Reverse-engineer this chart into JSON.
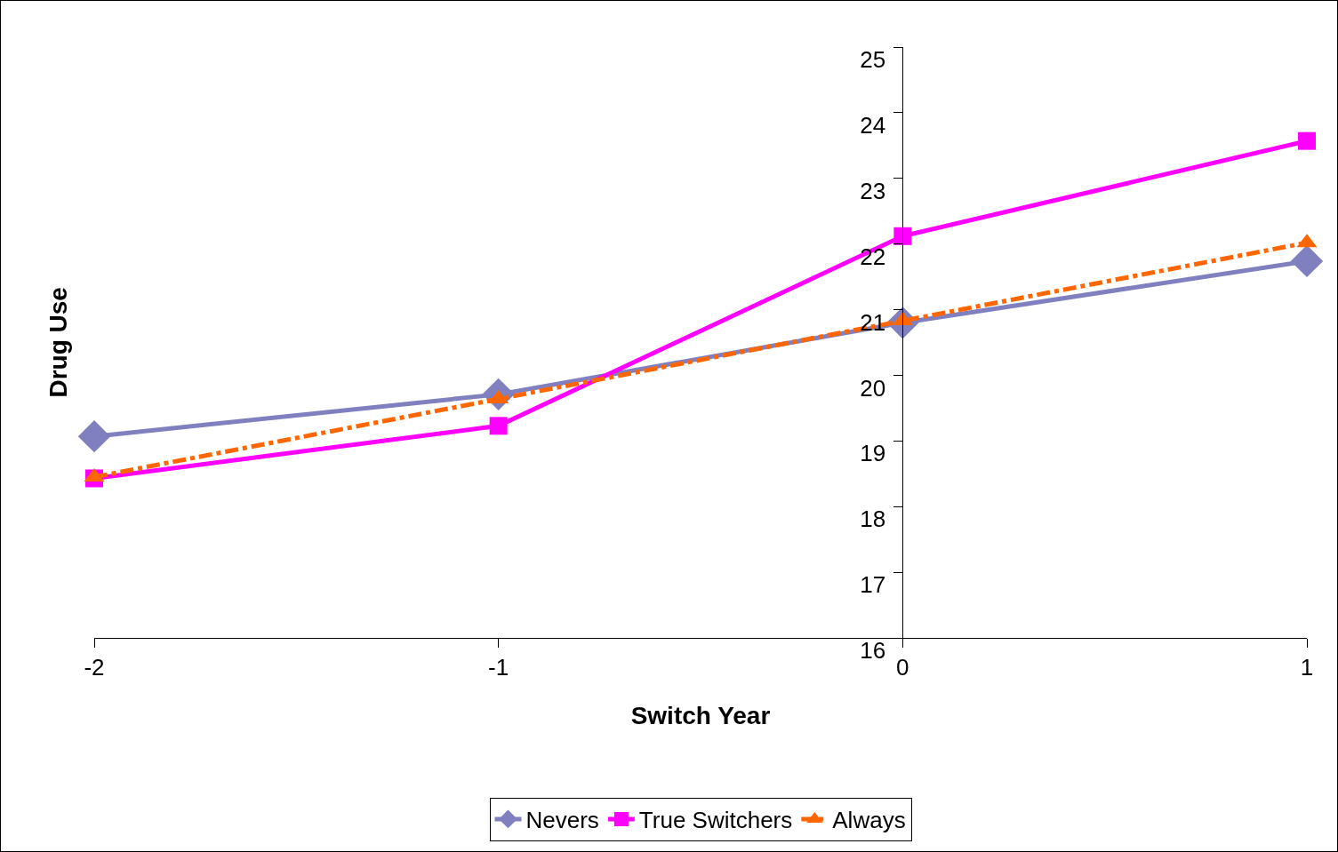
{
  "chart_data": {
    "type": "line",
    "xlabel": "Switch Year",
    "ylabel": "Drug Use",
    "x": [
      -2,
      -1,
      0,
      1
    ],
    "xlim": [
      -2,
      1
    ],
    "xticks": [
      -2,
      -1,
      0,
      1
    ],
    "ylim": [
      16,
      25
    ],
    "yticks": [
      16,
      17,
      18,
      19,
      20,
      21,
      22,
      23,
      24,
      25
    ],
    "grid": false,
    "legend": "bottom",
    "series": [
      {
        "name": "Nevers",
        "color": "#8080c0",
        "marker": "diamond",
        "line_style": "solid",
        "values": [
          19.07,
          19.71,
          20.8,
          21.74
        ]
      },
      {
        "name": "True Switchers",
        "color": "#ff00ff",
        "marker": "square",
        "line_style": "solid",
        "values": [
          18.43,
          19.23,
          22.12,
          23.57
        ]
      },
      {
        "name": "Always",
        "color": "#ff6600",
        "marker": "triangle",
        "line_style": "dashed",
        "values": [
          18.45,
          19.64,
          20.83,
          22.02
        ]
      }
    ]
  }
}
